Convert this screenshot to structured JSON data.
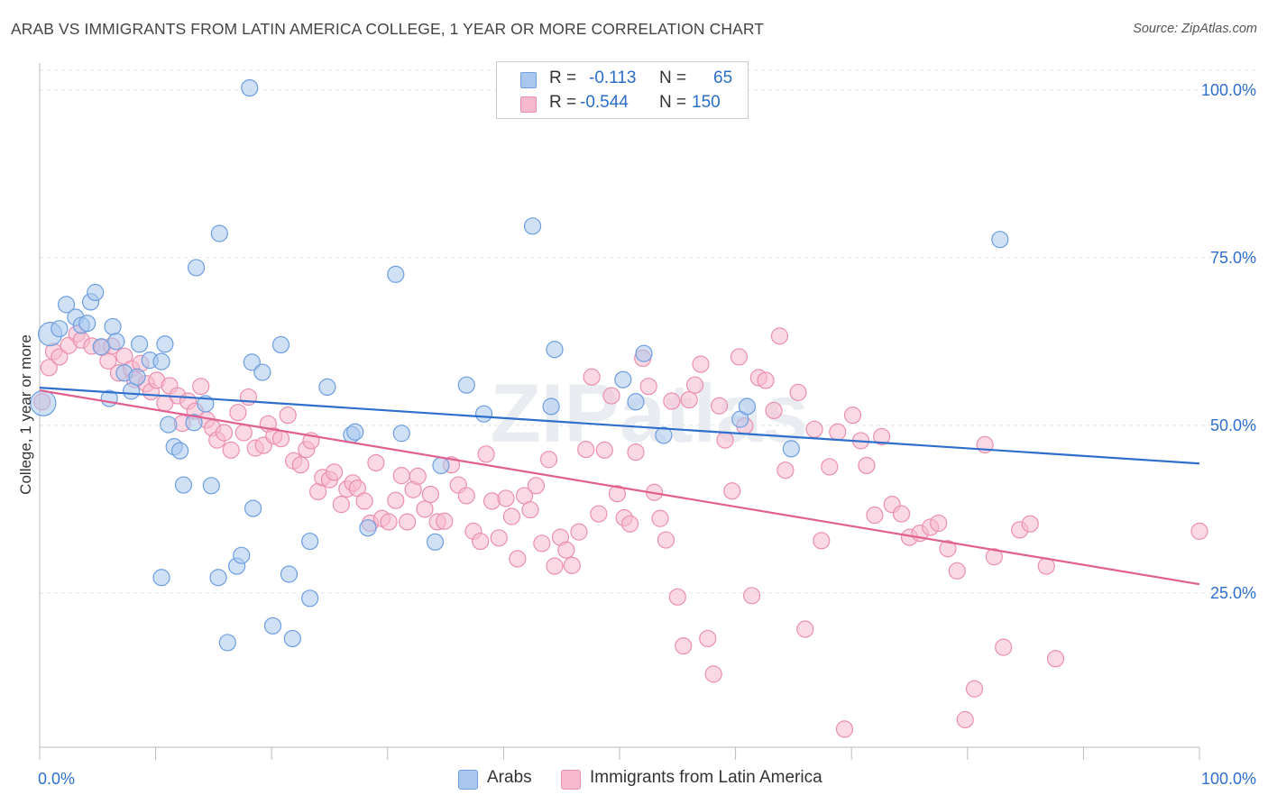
{
  "title": "ARAB VS IMMIGRANTS FROM LATIN AMERICA COLLEGE, 1 YEAR OR MORE CORRELATION CHART",
  "source": "Source: ZipAtlas.com",
  "watermark": "ZIPatlas",
  "legend": {
    "arabs": {
      "r_label": "R =",
      "r_value": "-0.113",
      "n_label": "N =",
      "n_value": "65"
    },
    "latin": {
      "r_label": "R =",
      "r_value": "-0.544",
      "n_label": "N =",
      "n_value": "150"
    }
  },
  "bottom_legend": {
    "arabs": "Arabs",
    "latin": "Immigrants from Latin America"
  },
  "colors": {
    "arabs_fill": "#aac8ef",
    "arabs_stroke": "#6d9ee0",
    "arabs_line": "#2f6fcc",
    "latin_fill": "#f7b9cd",
    "latin_stroke": "#eb8fae",
    "latin_line": "#e0608f",
    "tick_label": "#2f6fcc",
    "grid": "#e3e3e3"
  },
  "chart_data": {
    "type": "scatter",
    "title": "ARAB VS IMMIGRANTS FROM LATIN AMERICA COLLEGE, 1 YEAR OR MORE CORRELATION CHART",
    "xlabel": "",
    "ylabel": "College, 1 year or more",
    "xlim": [
      0,
      100
    ],
    "ylim": [
      2,
      104
    ],
    "x_tick_labels": [
      "0.0%",
      "100.0%"
    ],
    "y_ticks": [
      25,
      50,
      75,
      100
    ],
    "y_tick_labels": [
      "25.0%",
      "50.0%",
      "75.0%",
      "100.0%"
    ],
    "grid": true,
    "series": [
      {
        "name": "Arabs",
        "r": -0.113,
        "n": 65,
        "trend": {
          "x": [
            0,
            100
          ],
          "y": [
            55.6,
            44.3
          ]
        },
        "points": [
          [
            0.3,
            53.3,
            14
          ],
          [
            0.9,
            63.6,
            13
          ],
          [
            1.7,
            64.4,
            9
          ],
          [
            2.3,
            68.0,
            9
          ],
          [
            3.1,
            66.1,
            9
          ],
          [
            3.6,
            64.9,
            9
          ],
          [
            4.1,
            65.2,
            9
          ],
          [
            4.4,
            68.4,
            9
          ],
          [
            4.8,
            69.8,
            9
          ],
          [
            5.3,
            61.7,
            9
          ],
          [
            6.3,
            64.7,
            9
          ],
          [
            6.6,
            62.5,
            9
          ],
          [
            6.0,
            54.0,
            9
          ],
          [
            7.3,
            57.8,
            9
          ],
          [
            7.9,
            55.1,
            9
          ],
          [
            8.4,
            57.2,
            9
          ],
          [
            8.6,
            62.1,
            9
          ],
          [
            9.5,
            59.7,
            9
          ],
          [
            10.5,
            27.3,
            9
          ],
          [
            10.5,
            59.5,
            9
          ],
          [
            10.8,
            62.1,
            9
          ],
          [
            11.1,
            50.1,
            9
          ],
          [
            11.6,
            46.8,
            9
          ],
          [
            12.1,
            46.2,
            9
          ],
          [
            12.4,
            41.1,
            9
          ],
          [
            13.3,
            50.4,
            9
          ],
          [
            13.5,
            73.5,
            9
          ],
          [
            14.3,
            53.2,
            9
          ],
          [
            14.8,
            41.0,
            9
          ],
          [
            15.5,
            78.6,
            9
          ],
          [
            15.4,
            27.3,
            9
          ],
          [
            16.2,
            17.6,
            9
          ],
          [
            17.0,
            29.0,
            9
          ],
          [
            17.4,
            30.6,
            9
          ],
          [
            18.1,
            100.3,
            9
          ],
          [
            18.3,
            59.4,
            9
          ],
          [
            18.4,
            37.6,
            9
          ],
          [
            19.2,
            57.9,
            9
          ],
          [
            20.1,
            20.1,
            9
          ],
          [
            20.8,
            62.0,
            9
          ],
          [
            21.5,
            27.8,
            9
          ],
          [
            21.8,
            18.2,
            9
          ],
          [
            23.3,
            32.7,
            9
          ],
          [
            23.3,
            24.2,
            9
          ],
          [
            24.8,
            55.7,
            9
          ],
          [
            26.9,
            48.6,
            9
          ],
          [
            27.2,
            49.0,
            9
          ],
          [
            28.3,
            34.7,
            9
          ],
          [
            30.7,
            72.5,
            9
          ],
          [
            31.2,
            48.8,
            9
          ],
          [
            34.1,
            32.6,
            9
          ],
          [
            34.6,
            44.0,
            9
          ],
          [
            36.8,
            56.0,
            9
          ],
          [
            38.3,
            51.7,
            9
          ],
          [
            42.5,
            79.7,
            9
          ],
          [
            44.1,
            52.8,
            9
          ],
          [
            44.4,
            61.3,
            9
          ],
          [
            50.3,
            56.8,
            9
          ],
          [
            51.4,
            53.5,
            9
          ],
          [
            52.1,
            60.7,
            9
          ],
          [
            53.8,
            48.5,
            9
          ],
          [
            60.4,
            50.9,
            9
          ],
          [
            61.0,
            52.8,
            9
          ],
          [
            64.8,
            46.5,
            9
          ],
          [
            82.8,
            77.7,
            9
          ]
        ]
      },
      {
        "name": "Immigrants from Latin America",
        "r": -0.544,
        "n": 150,
        "trend": {
          "x": [
            0,
            100
          ],
          "y": [
            55.2,
            26.3
          ]
        },
        "points": [
          [
            0.2,
            53.5,
            9
          ],
          [
            0.8,
            58.6,
            9
          ],
          [
            1.2,
            61.0,
            9
          ],
          [
            1.7,
            60.2,
            9
          ],
          [
            2.5,
            61.9,
            9
          ],
          [
            3.2,
            63.6,
            9
          ],
          [
            3.6,
            62.7,
            9
          ],
          [
            4.5,
            61.8,
            9
          ],
          [
            5.4,
            61.6,
            9
          ],
          [
            5.9,
            59.6,
            9
          ],
          [
            6.2,
            61.8,
            9
          ],
          [
            6.8,
            57.8,
            9
          ],
          [
            7.3,
            60.3,
            9
          ],
          [
            7.9,
            58.4,
            9
          ],
          [
            8.2,
            56.8,
            9
          ],
          [
            8.7,
            59.2,
            9
          ],
          [
            9.2,
            56.2,
            9
          ],
          [
            9.6,
            55.0,
            9
          ],
          [
            10.1,
            56.7,
            9
          ],
          [
            10.8,
            53.3,
            9
          ],
          [
            11.2,
            55.9,
            9
          ],
          [
            11.9,
            54.4,
            9
          ],
          [
            12.3,
            50.3,
            9
          ],
          [
            12.8,
            53.6,
            9
          ],
          [
            13.4,
            52.1,
            9
          ],
          [
            13.9,
            55.8,
            9
          ],
          [
            14.4,
            50.8,
            9
          ],
          [
            14.9,
            49.6,
            9
          ],
          [
            15.3,
            47.8,
            9
          ],
          [
            15.9,
            48.9,
            9
          ],
          [
            16.5,
            46.3,
            9
          ],
          [
            17.1,
            51.9,
            9
          ],
          [
            17.6,
            48.9,
            9
          ],
          [
            18.0,
            54.2,
            9
          ],
          [
            18.6,
            46.6,
            9
          ],
          [
            19.3,
            47.0,
            9
          ],
          [
            19.7,
            50.2,
            9
          ],
          [
            20.2,
            48.4,
            9
          ],
          [
            20.8,
            48.0,
            9
          ],
          [
            21.4,
            51.5,
            9
          ],
          [
            21.9,
            44.7,
            9
          ],
          [
            22.5,
            44.1,
            9
          ],
          [
            23.0,
            46.4,
            9
          ],
          [
            23.4,
            47.7,
            9
          ],
          [
            24.0,
            40.1,
            9
          ],
          [
            24.4,
            42.2,
            9
          ],
          [
            25.0,
            41.9,
            9
          ],
          [
            25.4,
            43.0,
            9
          ],
          [
            26.0,
            38.2,
            9
          ],
          [
            26.5,
            40.5,
            9
          ],
          [
            27.0,
            41.4,
            9
          ],
          [
            27.4,
            40.6,
            9
          ],
          [
            28.0,
            38.7,
            9
          ],
          [
            28.5,
            35.4,
            9
          ],
          [
            29.0,
            44.4,
            9
          ],
          [
            29.5,
            36.1,
            9
          ],
          [
            30.1,
            35.6,
            9
          ],
          [
            30.7,
            38.8,
            9
          ],
          [
            31.2,
            42.5,
            9
          ],
          [
            31.7,
            35.6,
            9
          ],
          [
            32.2,
            40.4,
            9
          ],
          [
            32.6,
            42.4,
            9
          ],
          [
            33.2,
            37.5,
            9
          ],
          [
            33.7,
            39.7,
            9
          ],
          [
            34.3,
            35.6,
            9
          ],
          [
            34.9,
            35.7,
            9
          ],
          [
            35.5,
            44.1,
            9
          ],
          [
            36.1,
            41.1,
            9
          ],
          [
            36.8,
            39.5,
            9
          ],
          [
            37.4,
            34.2,
            9
          ],
          [
            38.0,
            32.7,
            9
          ],
          [
            38.5,
            45.7,
            9
          ],
          [
            39.0,
            38.7,
            9
          ],
          [
            39.6,
            33.2,
            9
          ],
          [
            40.2,
            39.1,
            9
          ],
          [
            40.7,
            36.4,
            9
          ],
          [
            41.2,
            30.1,
            9
          ],
          [
            41.8,
            39.5,
            9
          ],
          [
            42.3,
            37.4,
            9
          ],
          [
            42.8,
            41.0,
            9
          ],
          [
            43.3,
            32.4,
            9
          ],
          [
            43.9,
            44.9,
            9
          ],
          [
            44.4,
            29.0,
            9
          ],
          [
            44.9,
            33.3,
            9
          ],
          [
            45.4,
            31.4,
            9
          ],
          [
            45.9,
            29.1,
            9
          ],
          [
            46.5,
            34.1,
            9
          ],
          [
            47.1,
            46.4,
            9
          ],
          [
            47.6,
            57.2,
            9
          ],
          [
            48.2,
            36.8,
            9
          ],
          [
            48.7,
            46.3,
            9
          ],
          [
            49.3,
            54.4,
            9
          ],
          [
            49.8,
            39.8,
            9
          ],
          [
            50.4,
            36.2,
            9
          ],
          [
            50.9,
            35.3,
            9
          ],
          [
            51.4,
            46.0,
            9
          ],
          [
            52.0,
            60.0,
            9
          ],
          [
            52.5,
            55.8,
            9
          ],
          [
            53.0,
            40.0,
            9
          ],
          [
            53.5,
            36.1,
            9
          ],
          [
            54.0,
            32.9,
            9
          ],
          [
            54.5,
            53.6,
            9
          ],
          [
            55.0,
            24.4,
            9
          ],
          [
            55.5,
            17.1,
            9
          ],
          [
            56.0,
            53.8,
            9
          ],
          [
            56.5,
            56.0,
            9
          ],
          [
            57.0,
            59.1,
            9
          ],
          [
            57.6,
            18.2,
            9
          ],
          [
            58.1,
            12.9,
            9
          ],
          [
            58.6,
            52.9,
            9
          ],
          [
            59.1,
            47.8,
            9
          ],
          [
            59.7,
            40.2,
            9
          ],
          [
            60.3,
            60.2,
            9
          ],
          [
            60.8,
            49.9,
            9
          ],
          [
            61.4,
            24.6,
            9
          ],
          [
            62.0,
            57.1,
            9
          ],
          [
            62.6,
            56.7,
            9
          ],
          [
            63.3,
            52.2,
            9
          ],
          [
            63.8,
            63.3,
            9
          ],
          [
            64.3,
            43.3,
            9
          ],
          [
            65.4,
            54.9,
            9
          ],
          [
            66.0,
            19.6,
            9
          ],
          [
            66.8,
            49.4,
            9
          ],
          [
            67.4,
            32.8,
            9
          ],
          [
            68.1,
            43.8,
            9
          ],
          [
            68.8,
            49.0,
            9
          ],
          [
            69.4,
            4.7,
            9
          ],
          [
            70.1,
            51.5,
            9
          ],
          [
            70.8,
            47.7,
            9
          ],
          [
            71.3,
            44.0,
            9
          ],
          [
            72.0,
            36.6,
            9
          ],
          [
            72.6,
            48.3,
            9
          ],
          [
            73.5,
            38.2,
            9
          ],
          [
            74.3,
            36.8,
            9
          ],
          [
            75.0,
            33.3,
            9
          ],
          [
            75.9,
            33.9,
            9
          ],
          [
            76.8,
            34.8,
            9
          ],
          [
            77.5,
            35.4,
            9
          ],
          [
            78.3,
            31.6,
            9
          ],
          [
            79.1,
            28.3,
            9
          ],
          [
            79.8,
            6.1,
            9
          ],
          [
            80.6,
            10.7,
            9
          ],
          [
            81.5,
            47.1,
            9
          ],
          [
            82.3,
            30.4,
            9
          ],
          [
            83.1,
            16.9,
            9
          ],
          [
            84.5,
            34.4,
            9
          ],
          [
            85.4,
            35.3,
            9
          ],
          [
            86.8,
            29.0,
            9
          ],
          [
            87.6,
            15.2,
            9
          ],
          [
            100.0,
            34.2,
            9
          ]
        ]
      }
    ]
  }
}
